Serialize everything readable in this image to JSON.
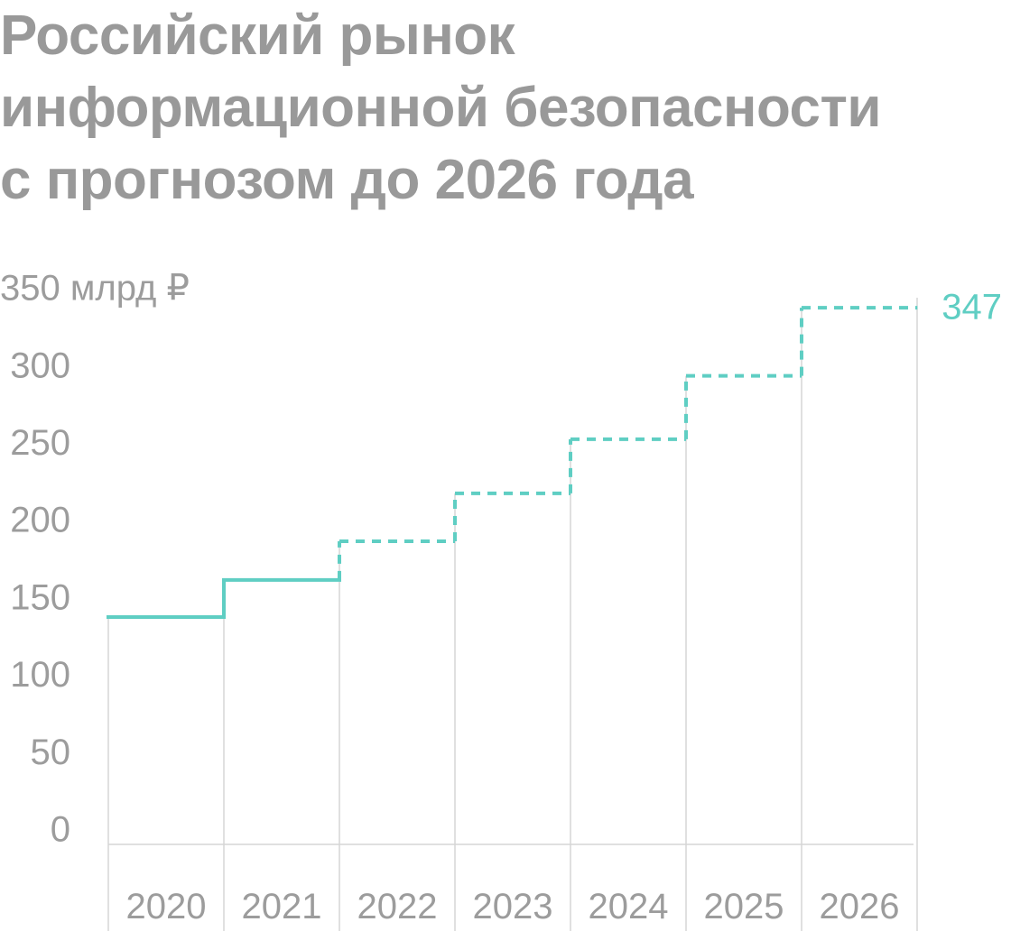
{
  "title_lines": [
    "Российский рынок",
    "информационной безопасности",
    "с прогнозом до 2026 года"
  ],
  "colors": {
    "title": "#999999",
    "axis_text": "#9c9c9c",
    "grid": "#d6d6d6",
    "series": "#5fcec3"
  },
  "chart_data": {
    "type": "line",
    "step": true,
    "title": "Российский рынок информационной безопасности с прогнозом до 2026 года",
    "x": [
      "2020",
      "2021",
      "2022",
      "2023",
      "2024",
      "2025",
      "2026"
    ],
    "ylim": [
      0,
      350
    ],
    "yticks": [
      0,
      50,
      100,
      150,
      200,
      250,
      300,
      350
    ],
    "ytick_labels": [
      "0",
      "50",
      "100",
      "150",
      "200",
      "250",
      "300",
      "350 млрд ₽"
    ],
    "ylabel": "",
    "xlabel": "",
    "grid": "vertical",
    "series": [
      {
        "values": [
          147,
          171,
          196,
          227,
          262,
          303,
          347
        ],
        "solid_until_index": 1,
        "forecast_from_index": 2
      }
    ],
    "annotations": [
      {
        "text": "347",
        "x": "2026",
        "y": 347
      }
    ]
  }
}
